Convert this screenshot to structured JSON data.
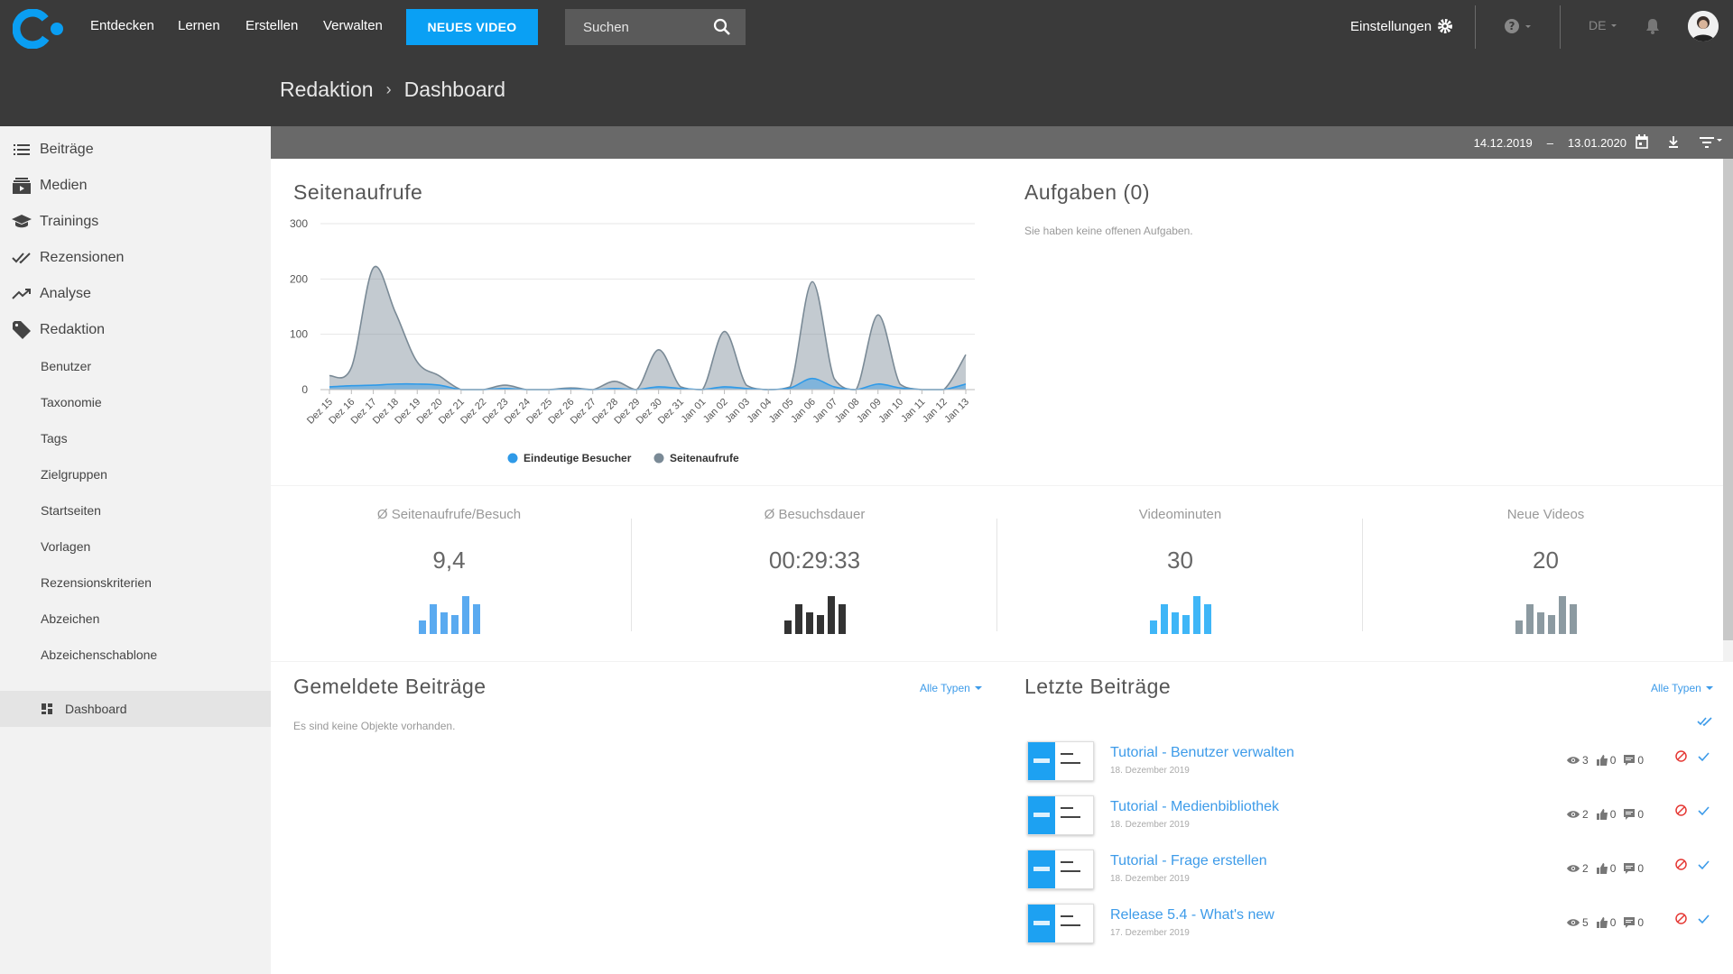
{
  "nav": {
    "items": [
      "Entdecken",
      "Lernen",
      "Erstellen",
      "Verwalten"
    ],
    "new_video": "NEUES VIDEO",
    "search_placeholder": "Suchen",
    "settings": "Einstellungen",
    "lang": "DE"
  },
  "breadcrumb": {
    "parent": "Redaktion",
    "current": "Dashboard"
  },
  "sidebar": {
    "main": [
      "Beiträge",
      "Medien",
      "Trainings",
      "Rezensionen",
      "Analyse",
      "Redaktion"
    ],
    "sub": [
      "Benutzer",
      "Taxonomie",
      "Tags",
      "Zielgruppen",
      "Startseiten",
      "Vorlagen",
      "Rezensionskriterien",
      "Abzeichen",
      "Abzeichenschablone"
    ],
    "active": "Dashboard"
  },
  "filter": {
    "from": "14.12.2019",
    "dash": "–",
    "to": "13.01.2020"
  },
  "pageviews": {
    "title": "Seitenaufrufe"
  },
  "tasks": {
    "title": "Aufgaben (0)",
    "empty": "Sie haben keine offenen Aufgaben."
  },
  "stats": [
    {
      "label": "Ø Seitenaufrufe/Besuch",
      "value": "9,4",
      "color": "#5aaaf0",
      "bars": [
        0.25,
        0.55,
        0.4,
        0.35,
        0.7,
        0.55
      ]
    },
    {
      "label": "Ø Besuchsdauer",
      "value": "00:29:33",
      "color": "#333333",
      "bars": [
        0.25,
        0.55,
        0.4,
        0.35,
        0.7,
        0.55
      ]
    },
    {
      "label": "Videominuten",
      "value": "30",
      "color": "#3fb6f7",
      "bars": [
        0.25,
        0.55,
        0.4,
        0.35,
        0.7,
        0.55
      ]
    },
    {
      "label": "Neue Videos",
      "value": "20",
      "color": "#8c9aa1",
      "bars": [
        0.25,
        0.55,
        0.4,
        0.35,
        0.7,
        0.55
      ]
    }
  ],
  "reported": {
    "title": "Gemeldete Beiträge",
    "filter": "Alle Typen",
    "empty": "Es sind keine Objekte vorhanden."
  },
  "recent": {
    "title": "Letzte Beiträge",
    "filter": "Alle Typen",
    "posts": [
      {
        "title": "Tutorial - Benutzer verwalten",
        "date": "18. Dezember 2019",
        "views": "3",
        "likes": "0",
        "comments": "0"
      },
      {
        "title": "Tutorial - Medienbibliothek",
        "date": "18. Dezember 2019",
        "views": "2",
        "likes": "0",
        "comments": "0"
      },
      {
        "title": "Tutorial - Frage erstellen",
        "date": "18. Dezember 2019",
        "views": "2",
        "likes": "0",
        "comments": "0"
      },
      {
        "title": "Release 5.4 - What's new",
        "date": "17. Dezember 2019",
        "views": "5",
        "likes": "0",
        "comments": "0"
      }
    ]
  },
  "chart_data": {
    "type": "area",
    "title": "Seitenaufrufe",
    "categories": [
      "Dez 15",
      "Dez 16",
      "Dez 17",
      "Dez 18",
      "Dez 19",
      "Dez 20",
      "Dez 21",
      "Dez 22",
      "Dez 23",
      "Dez 24",
      "Dez 25",
      "Dez 26",
      "Dez 27",
      "Dez 28",
      "Dez 29",
      "Dez 30",
      "Dez 31",
      "Jan 01",
      "Jan 02",
      "Jan 03",
      "Jan 04",
      "Jan 05",
      "Jan 06",
      "Jan 07",
      "Jan 08",
      "Jan 09",
      "Jan 10",
      "Jan 11",
      "Jan 12",
      "Jan 13"
    ],
    "series": [
      {
        "name": "Seitenaufrufe",
        "color": "#7a8a96",
        "values": [
          25,
          40,
          220,
          140,
          50,
          25,
          0,
          0,
          8,
          0,
          0,
          3,
          0,
          15,
          0,
          72,
          5,
          0,
          105,
          8,
          0,
          5,
          195,
          20,
          0,
          135,
          10,
          0,
          0,
          63
        ]
      },
      {
        "name": "Eindeutige Besucher",
        "color": "#2f9ae8",
        "values": [
          5,
          7,
          8,
          10,
          10,
          8,
          0,
          0,
          2,
          0,
          0,
          1,
          0,
          2,
          0,
          5,
          2,
          0,
          5,
          2,
          0,
          3,
          20,
          5,
          0,
          10,
          3,
          0,
          0,
          10
        ]
      }
    ],
    "yticks": [
      0,
      100,
      200,
      300
    ],
    "ylim": [
      0,
      300
    ],
    "legend": "bottom"
  }
}
